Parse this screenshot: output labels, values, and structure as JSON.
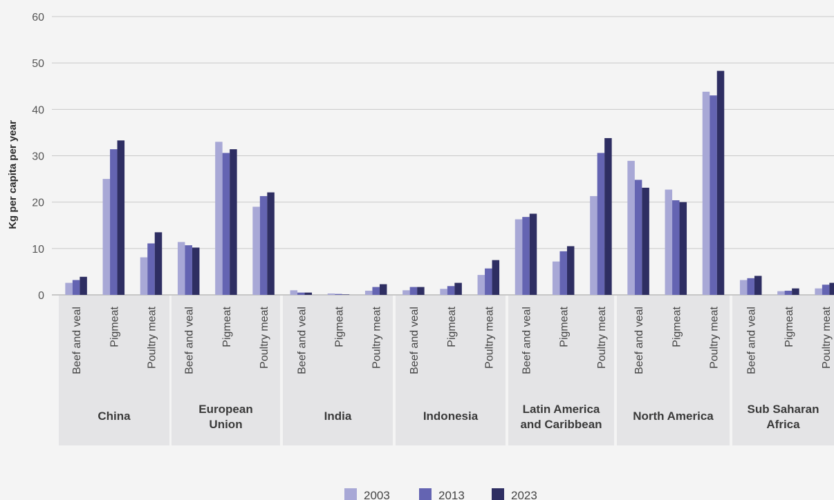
{
  "chart_data": {
    "type": "bar",
    "ylabel": "Kg per capita per year",
    "xlabel": "",
    "ylim": [
      0,
      60
    ],
    "yticks": [
      0,
      10,
      20,
      30,
      40,
      50,
      60
    ],
    "grid": true,
    "legend_position": "bottom",
    "groups": [
      {
        "name": "China",
        "lines": [
          "China"
        ]
      },
      {
        "name": "European Union",
        "lines": [
          "European",
          "Union"
        ]
      },
      {
        "name": "India",
        "lines": [
          "India"
        ]
      },
      {
        "name": "Indonesia",
        "lines": [
          "Indonesia"
        ]
      },
      {
        "name": "Latin America and Caribbean",
        "lines": [
          "Latin America",
          "and Caribbean"
        ]
      },
      {
        "name": "North America",
        "lines": [
          "North America"
        ]
      },
      {
        "name": "Sub Saharan Africa",
        "lines": [
          "Sub Saharan",
          "Africa"
        ]
      }
    ],
    "categories": [
      "Beef and veal",
      "Pigmeat",
      "Poultry meat"
    ],
    "series": [
      {
        "name": "2003",
        "color": "#a8a8d6",
        "values": [
          [
            2.6,
            25.0,
            8.1
          ],
          [
            11.4,
            33.0,
            19.0
          ],
          [
            1.0,
            0.3,
            0.9
          ],
          [
            1.0,
            1.3,
            4.3
          ],
          [
            16.3,
            7.2,
            21.3
          ],
          [
            28.9,
            22.7,
            43.8
          ],
          [
            3.2,
            0.8,
            1.4
          ]
        ]
      },
      {
        "name": "2013",
        "color": "#6464b2",
        "values": [
          [
            3.2,
            31.4,
            11.1
          ],
          [
            10.7,
            30.6,
            21.3
          ],
          [
            0.5,
            0.2,
            1.7
          ],
          [
            1.7,
            1.9,
            5.7
          ],
          [
            16.8,
            9.4,
            30.6
          ],
          [
            24.8,
            20.4,
            43.0
          ],
          [
            3.6,
            0.9,
            2.2
          ]
        ]
      },
      {
        "name": "2023",
        "color": "#2e2e62",
        "values": [
          [
            3.9,
            33.3,
            13.5
          ],
          [
            10.2,
            31.4,
            22.1
          ],
          [
            0.5,
            0.1,
            2.3
          ],
          [
            1.7,
            2.6,
            7.5
          ],
          [
            17.5,
            10.5,
            33.8
          ],
          [
            23.1,
            20.0,
            48.3
          ],
          [
            4.1,
            1.4,
            2.6
          ]
        ]
      }
    ]
  }
}
